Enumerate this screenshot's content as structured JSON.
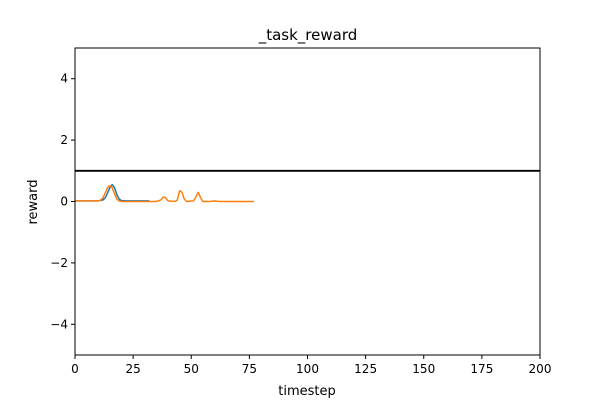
{
  "chart_data": {
    "type": "line",
    "title": "_task_reward",
    "xlabel": "timestep",
    "ylabel": "reward",
    "xlim": [
      0,
      200
    ],
    "ylim": [
      -5,
      5
    ],
    "x_ticks": [
      0,
      25,
      50,
      75,
      100,
      125,
      150,
      175,
      200
    ],
    "y_ticks": [
      -4,
      -2,
      0,
      2,
      4
    ],
    "x_tick_labels": [
      "0",
      "25",
      "50",
      "75",
      "100",
      "125",
      "150",
      "175",
      "200"
    ],
    "y_tick_labels": [
      "−4",
      "−2",
      "0",
      "2",
      "4"
    ],
    "grid": false,
    "legend": "none",
    "hline": {
      "y": 1.0,
      "color": "#000000"
    },
    "series": [
      {
        "color": "#1f77b4",
        "points": [
          [
            0,
            0.02
          ],
          [
            5,
            0.02
          ],
          [
            10,
            0.02
          ],
          [
            12,
            0.05
          ],
          [
            13,
            0.12
          ],
          [
            14,
            0.28
          ],
          [
            15,
            0.45
          ],
          [
            16,
            0.55
          ],
          [
            17,
            0.45
          ],
          [
            18,
            0.22
          ],
          [
            19,
            0.08
          ],
          [
            20,
            0.03
          ],
          [
            22,
            0.02
          ],
          [
            25,
            0.02
          ],
          [
            30,
            0.02
          ],
          [
            32,
            0.02
          ]
        ]
      },
      {
        "color": "#ff7f0e",
        "points": [
          [
            0,
            0.02
          ],
          [
            5,
            0.02
          ],
          [
            10,
            0.02
          ],
          [
            11,
            0.04
          ],
          [
            12,
            0.12
          ],
          [
            13,
            0.28
          ],
          [
            14,
            0.45
          ],
          [
            15,
            0.52
          ],
          [
            16,
            0.45
          ],
          [
            17,
            0.25
          ],
          [
            18,
            0.08
          ],
          [
            19,
            0.02
          ],
          [
            20,
            0.0
          ],
          [
            25,
            0.0
          ],
          [
            30,
            0.0
          ],
          [
            35,
            0.0
          ],
          [
            37,
            0.05
          ],
          [
            38,
            0.15
          ],
          [
            39,
            0.12
          ],
          [
            40,
            0.02
          ],
          [
            43,
            0.0
          ],
          [
            44,
            0.05
          ],
          [
            45,
            0.35
          ],
          [
            46,
            0.3
          ],
          [
            47,
            0.08
          ],
          [
            48,
            0.0
          ],
          [
            51,
            0.02
          ],
          [
            52,
            0.15
          ],
          [
            53,
            0.3
          ],
          [
            54,
            0.12
          ],
          [
            55,
            0.0
          ],
          [
            58,
            0.0
          ],
          [
            60,
            0.02
          ],
          [
            62,
            0.0
          ],
          [
            65,
            0.0
          ],
          [
            70,
            0.0
          ],
          [
            77,
            0.0
          ]
        ]
      }
    ]
  }
}
